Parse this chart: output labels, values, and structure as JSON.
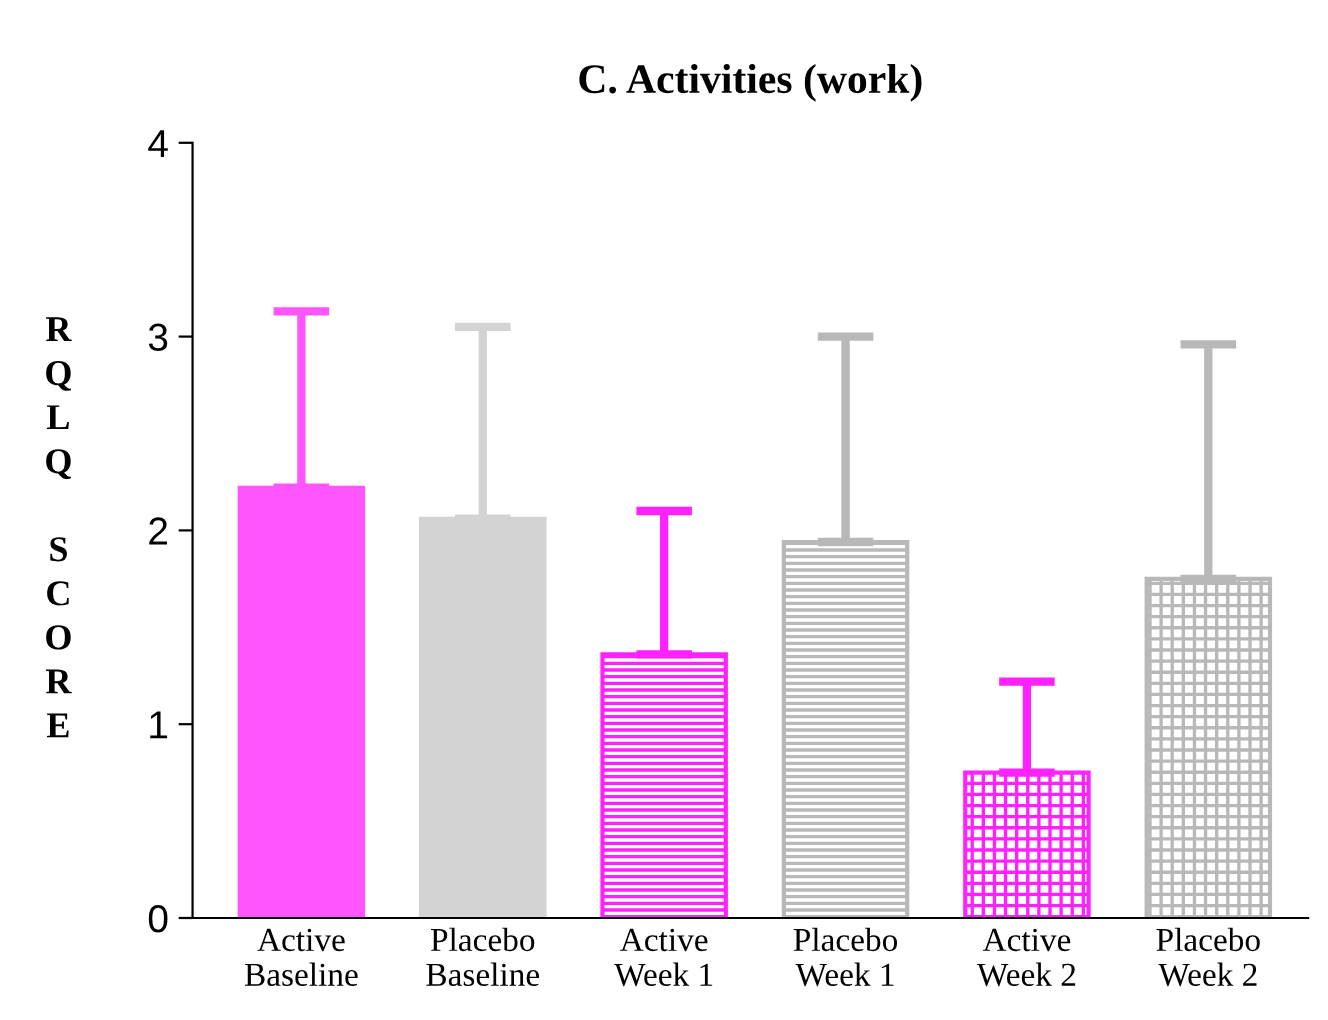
{
  "chart_data": {
    "type": "bar",
    "title": "C. Activities (work)",
    "ylabel": "RQLQ SCORE",
    "categories": [
      "Active\nBaseline",
      "Placebo\nBaseline",
      "Active\nWeek 1",
      "Placebo\nWeek 1",
      "Active\nWeek 2",
      "Placebo\nWeek 2"
    ],
    "values": [
      2.22,
      2.06,
      1.36,
      1.94,
      0.75,
      1.75
    ],
    "colors": [
      "#ff55ff",
      "#d3d3d3",
      "#ff22ff",
      "#b8b8b8",
      "#ff22ff",
      "#b8b8b8"
    ],
    "errors": [
      [
        2.22,
        3.13
      ],
      [
        2.06,
        3.05
      ],
      [
        1.36,
        2.1
      ],
      [
        1.94,
        3.0
      ],
      [
        0.75,
        1.22
      ],
      [
        1.75,
        2.96
      ]
    ],
    "ylim": [
      0,
      4
    ],
    "yticks": [
      0,
      1,
      2,
      3,
      4
    ],
    "grid": false,
    "legend": false
  }
}
